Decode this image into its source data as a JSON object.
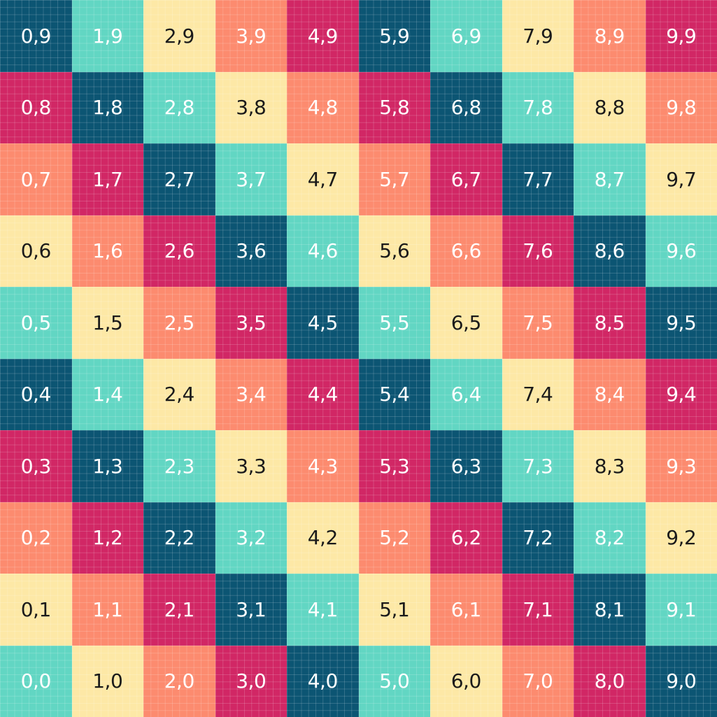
{
  "palette": {
    "navy": "#0c5573",
    "mint": "#62d6c3",
    "cream": "#fde8a6",
    "salmon": "#fc8b6f",
    "crimson": "#d12765"
  },
  "text_colors": {
    "navy": "#ffffff",
    "mint": "#ffffff",
    "cream": "#1a1a1a",
    "salmon": "#ffffff",
    "crimson": "#ffffff"
  },
  "rows": [
    {
      "labels": [
        "0,9",
        "1,9",
        "2,9",
        "3,9",
        "4,9",
        "5,9",
        "6,9",
        "7,9",
        "8,9",
        "9,9"
      ],
      "colors": [
        "navy",
        "mint",
        "cream",
        "salmon",
        "crimson",
        "navy",
        "mint",
        "cream",
        "salmon",
        "crimson"
      ]
    },
    {
      "labels": [
        "0,8",
        "1,8",
        "2,8",
        "3,8",
        "4,8",
        "5,8",
        "6,8",
        "7,8",
        "8,8",
        "9,8"
      ],
      "colors": [
        "crimson",
        "navy",
        "mint",
        "cream",
        "salmon",
        "crimson",
        "navy",
        "mint",
        "cream",
        "salmon"
      ]
    },
    {
      "labels": [
        "0,7",
        "1,7",
        "2,7",
        "3,7",
        "4,7",
        "5,7",
        "6,7",
        "7,7",
        "8,7",
        "9,7"
      ],
      "colors": [
        "salmon",
        "crimson",
        "navy",
        "mint",
        "cream",
        "salmon",
        "crimson",
        "navy",
        "mint",
        "cream"
      ]
    },
    {
      "labels": [
        "0,6",
        "1,6",
        "2,6",
        "3,6",
        "4,6",
        "5,6",
        "6,6",
        "7,6",
        "8,6",
        "9,6"
      ],
      "colors": [
        "cream",
        "salmon",
        "crimson",
        "navy",
        "mint",
        "cream",
        "salmon",
        "crimson",
        "navy",
        "mint"
      ]
    },
    {
      "labels": [
        "0,5",
        "1,5",
        "2,5",
        "3,5",
        "4,5",
        "5,5",
        "6,5",
        "7,5",
        "8,5",
        "9,5"
      ],
      "colors": [
        "mint",
        "cream",
        "salmon",
        "crimson",
        "navy",
        "mint",
        "cream",
        "salmon",
        "crimson",
        "navy"
      ]
    },
    {
      "labels": [
        "0,4",
        "1,4",
        "2,4",
        "3,4",
        "4,4",
        "5,4",
        "6,4",
        "7,4",
        "8,4",
        "9,4"
      ],
      "colors": [
        "navy",
        "mint",
        "cream",
        "salmon",
        "crimson",
        "navy",
        "mint",
        "cream",
        "salmon",
        "crimson"
      ]
    },
    {
      "labels": [
        "0,3",
        "1,3",
        "2,3",
        "3,3",
        "4,3",
        "5,3",
        "6,3",
        "7,3",
        "8,3",
        "9,3"
      ],
      "colors": [
        "crimson",
        "navy",
        "mint",
        "cream",
        "salmon",
        "crimson",
        "navy",
        "mint",
        "cream",
        "salmon"
      ]
    },
    {
      "labels": [
        "0,2",
        "1,2",
        "2,2",
        "3,2",
        "4,2",
        "5,2",
        "6,2",
        "7,2",
        "8,2",
        "9,2"
      ],
      "colors": [
        "salmon",
        "crimson",
        "navy",
        "mint",
        "cream",
        "salmon",
        "crimson",
        "navy",
        "mint",
        "cream"
      ]
    },
    {
      "labels": [
        "0,1",
        "1,1",
        "2,1",
        "3,1",
        "4,1",
        "5,1",
        "6,1",
        "7,1",
        "8,1",
        "9,1"
      ],
      "colors": [
        "cream",
        "salmon",
        "crimson",
        "navy",
        "mint",
        "cream",
        "salmon",
        "crimson",
        "navy",
        "mint"
      ]
    },
    {
      "labels": [
        "0,0",
        "1,0",
        "2,0",
        "3,0",
        "4,0",
        "5,0",
        "6,0",
        "7,0",
        "8,0",
        "9,0"
      ],
      "colors": [
        "mint",
        "cream",
        "salmon",
        "crimson",
        "navy",
        "mint",
        "cream",
        "salmon",
        "crimson",
        "navy"
      ]
    }
  ]
}
